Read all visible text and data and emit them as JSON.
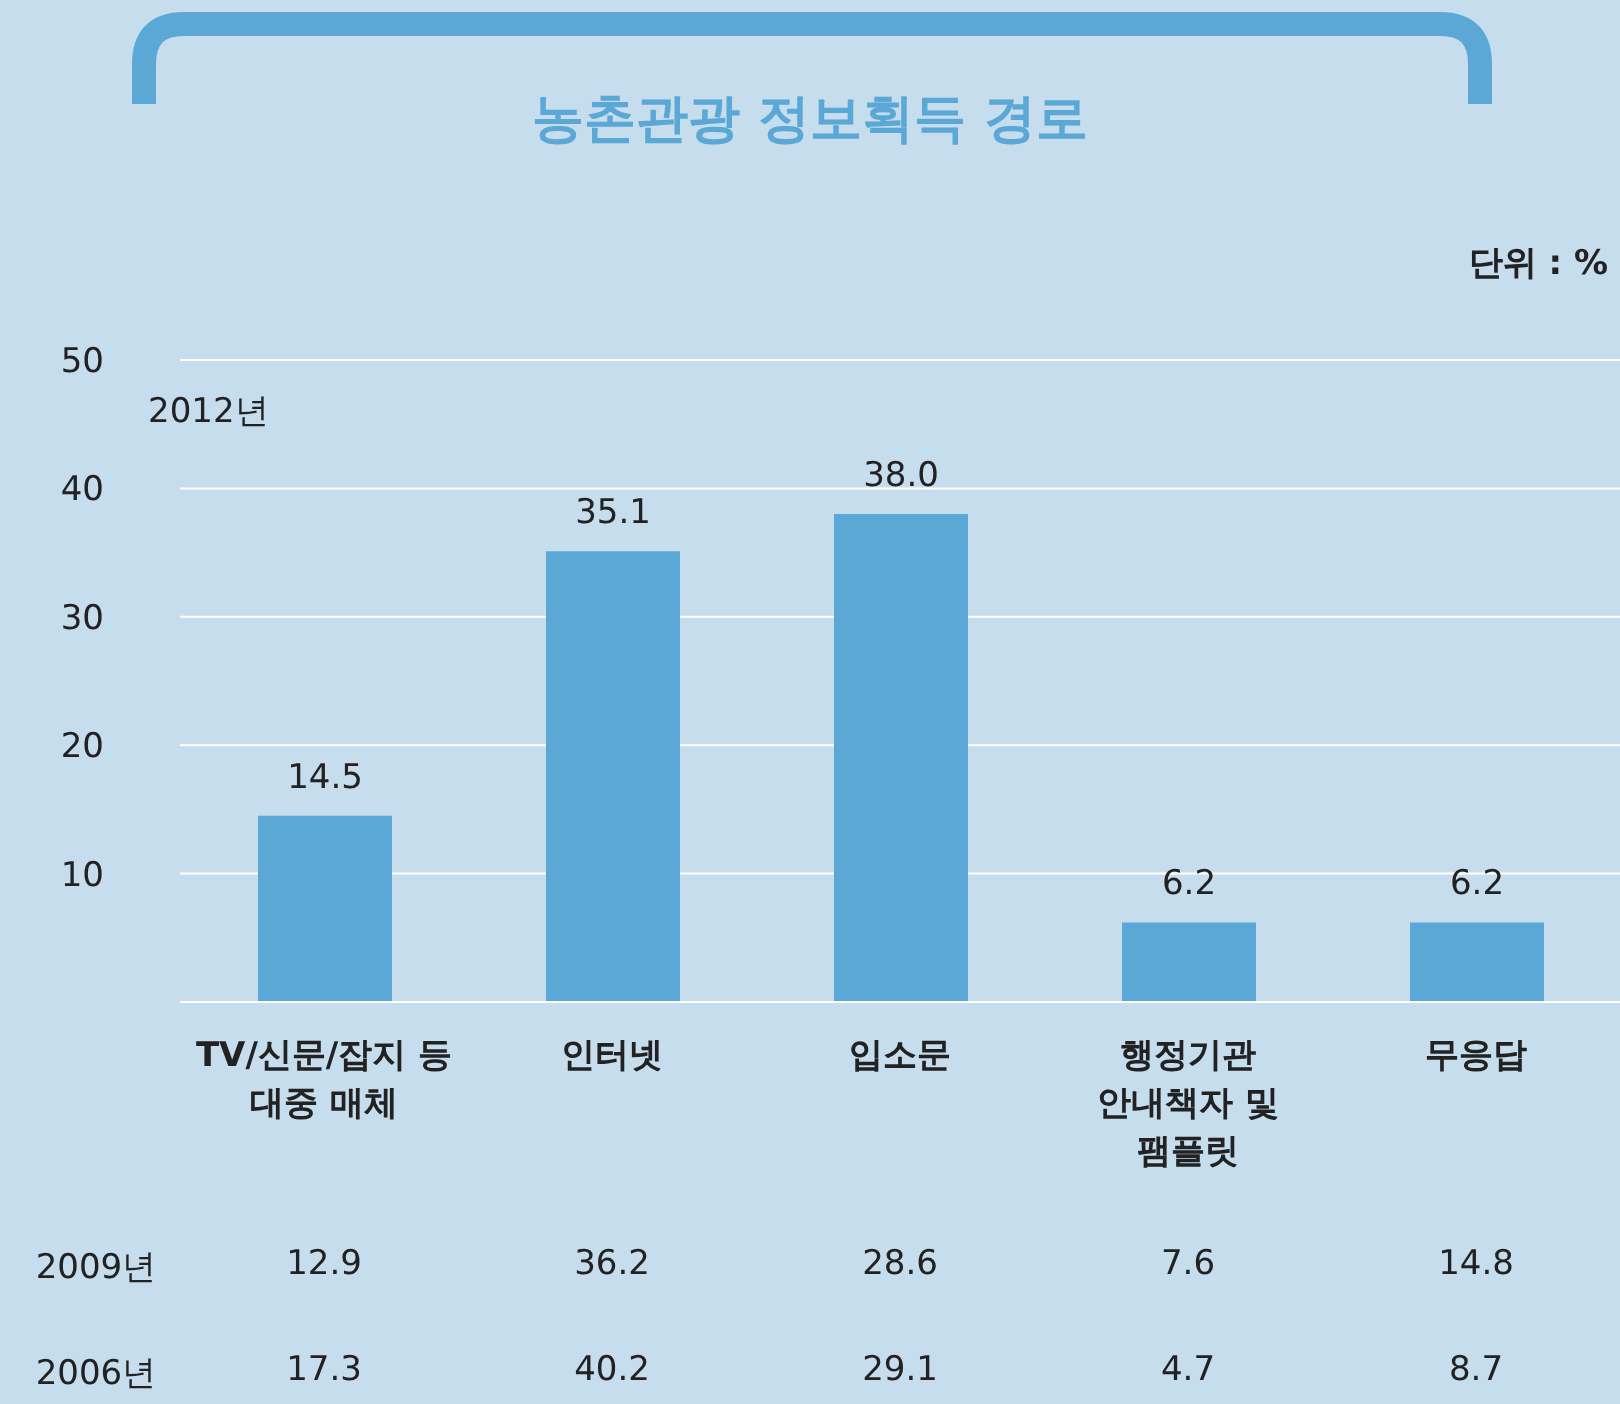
{
  "chart_data": {
    "type": "bar",
    "title": "농촌관광 정보획득 경로",
    "subtitle": "단위 : %",
    "categories": [
      "TV/신문/잡지 등\n대중 매체",
      "인터넷",
      "입소문",
      "행정기관\n안내책자 및\n팸플릿",
      "무응답"
    ],
    "series": [
      {
        "name": "2012년",
        "color": "#5ba8d6",
        "values": [
          14.5,
          35.1,
          38.0,
          6.2,
          6.2
        ],
        "value_labels": [
          "14.5",
          "35.1",
          "38.0",
          "6.2",
          "6.2"
        ]
      }
    ],
    "ylim": [
      0,
      50
    ],
    "yticks": [
      10,
      20,
      30,
      40,
      50
    ],
    "grid": "y",
    "annotations": [
      "2009년",
      "12.9",
      "36.2",
      "28.6",
      "7.6",
      "14.8",
      "2006년",
      "17.3",
      "40.2",
      "29.1",
      "4.7",
      "8.7"
    ]
  }
}
